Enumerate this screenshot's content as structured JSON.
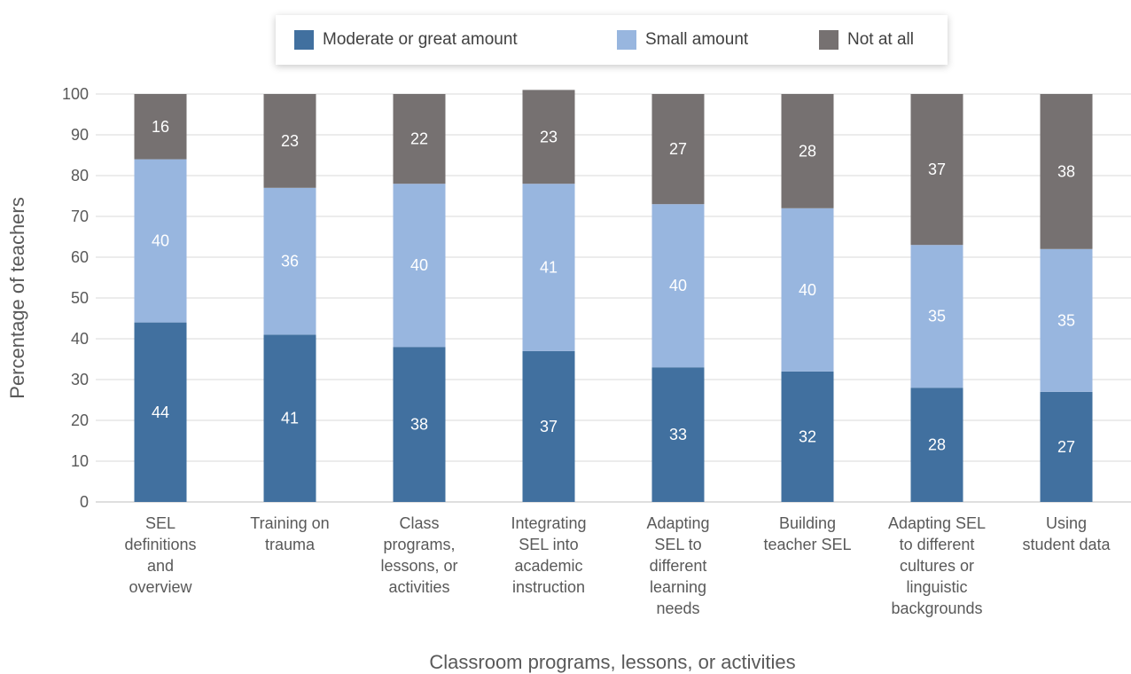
{
  "chart_data": {
    "type": "bar",
    "stacked": true,
    "xlabel": "Classroom programs, lessons, or activities",
    "ylabel": "Percentage of teachers",
    "ylim": [
      0,
      100
    ],
    "yticks": [
      0,
      10,
      20,
      30,
      40,
      50,
      60,
      70,
      80,
      90,
      100
    ],
    "grid": true,
    "legend_position": "top",
    "categories": [
      [
        "SEL",
        "definitions",
        "and",
        "overview"
      ],
      [
        "Training on",
        "trauma"
      ],
      [
        "Class",
        "programs,",
        "lessons, or",
        "activities"
      ],
      [
        "Integrating",
        "SEL into",
        "academic",
        "instruction"
      ],
      [
        "Adapting",
        "SEL to",
        "different",
        "learning",
        "needs"
      ],
      [
        "Building",
        "teacher SEL"
      ],
      [
        "Adapting SEL",
        "to different",
        "cultures or",
        "linguistic",
        "backgrounds"
      ],
      [
        "Using",
        "student data"
      ]
    ],
    "series": [
      {
        "name": "Moderate or great amount",
        "color": "#41709f",
        "values": [
          44,
          41,
          38,
          37,
          33,
          32,
          28,
          27
        ]
      },
      {
        "name": "Small amount",
        "color": "#98b6df",
        "values": [
          40,
          36,
          40,
          41,
          40,
          40,
          35,
          35
        ]
      },
      {
        "name": "Not at all",
        "color": "#767171",
        "values": [
          16,
          23,
          22,
          23,
          27,
          28,
          37,
          38
        ]
      }
    ]
  }
}
